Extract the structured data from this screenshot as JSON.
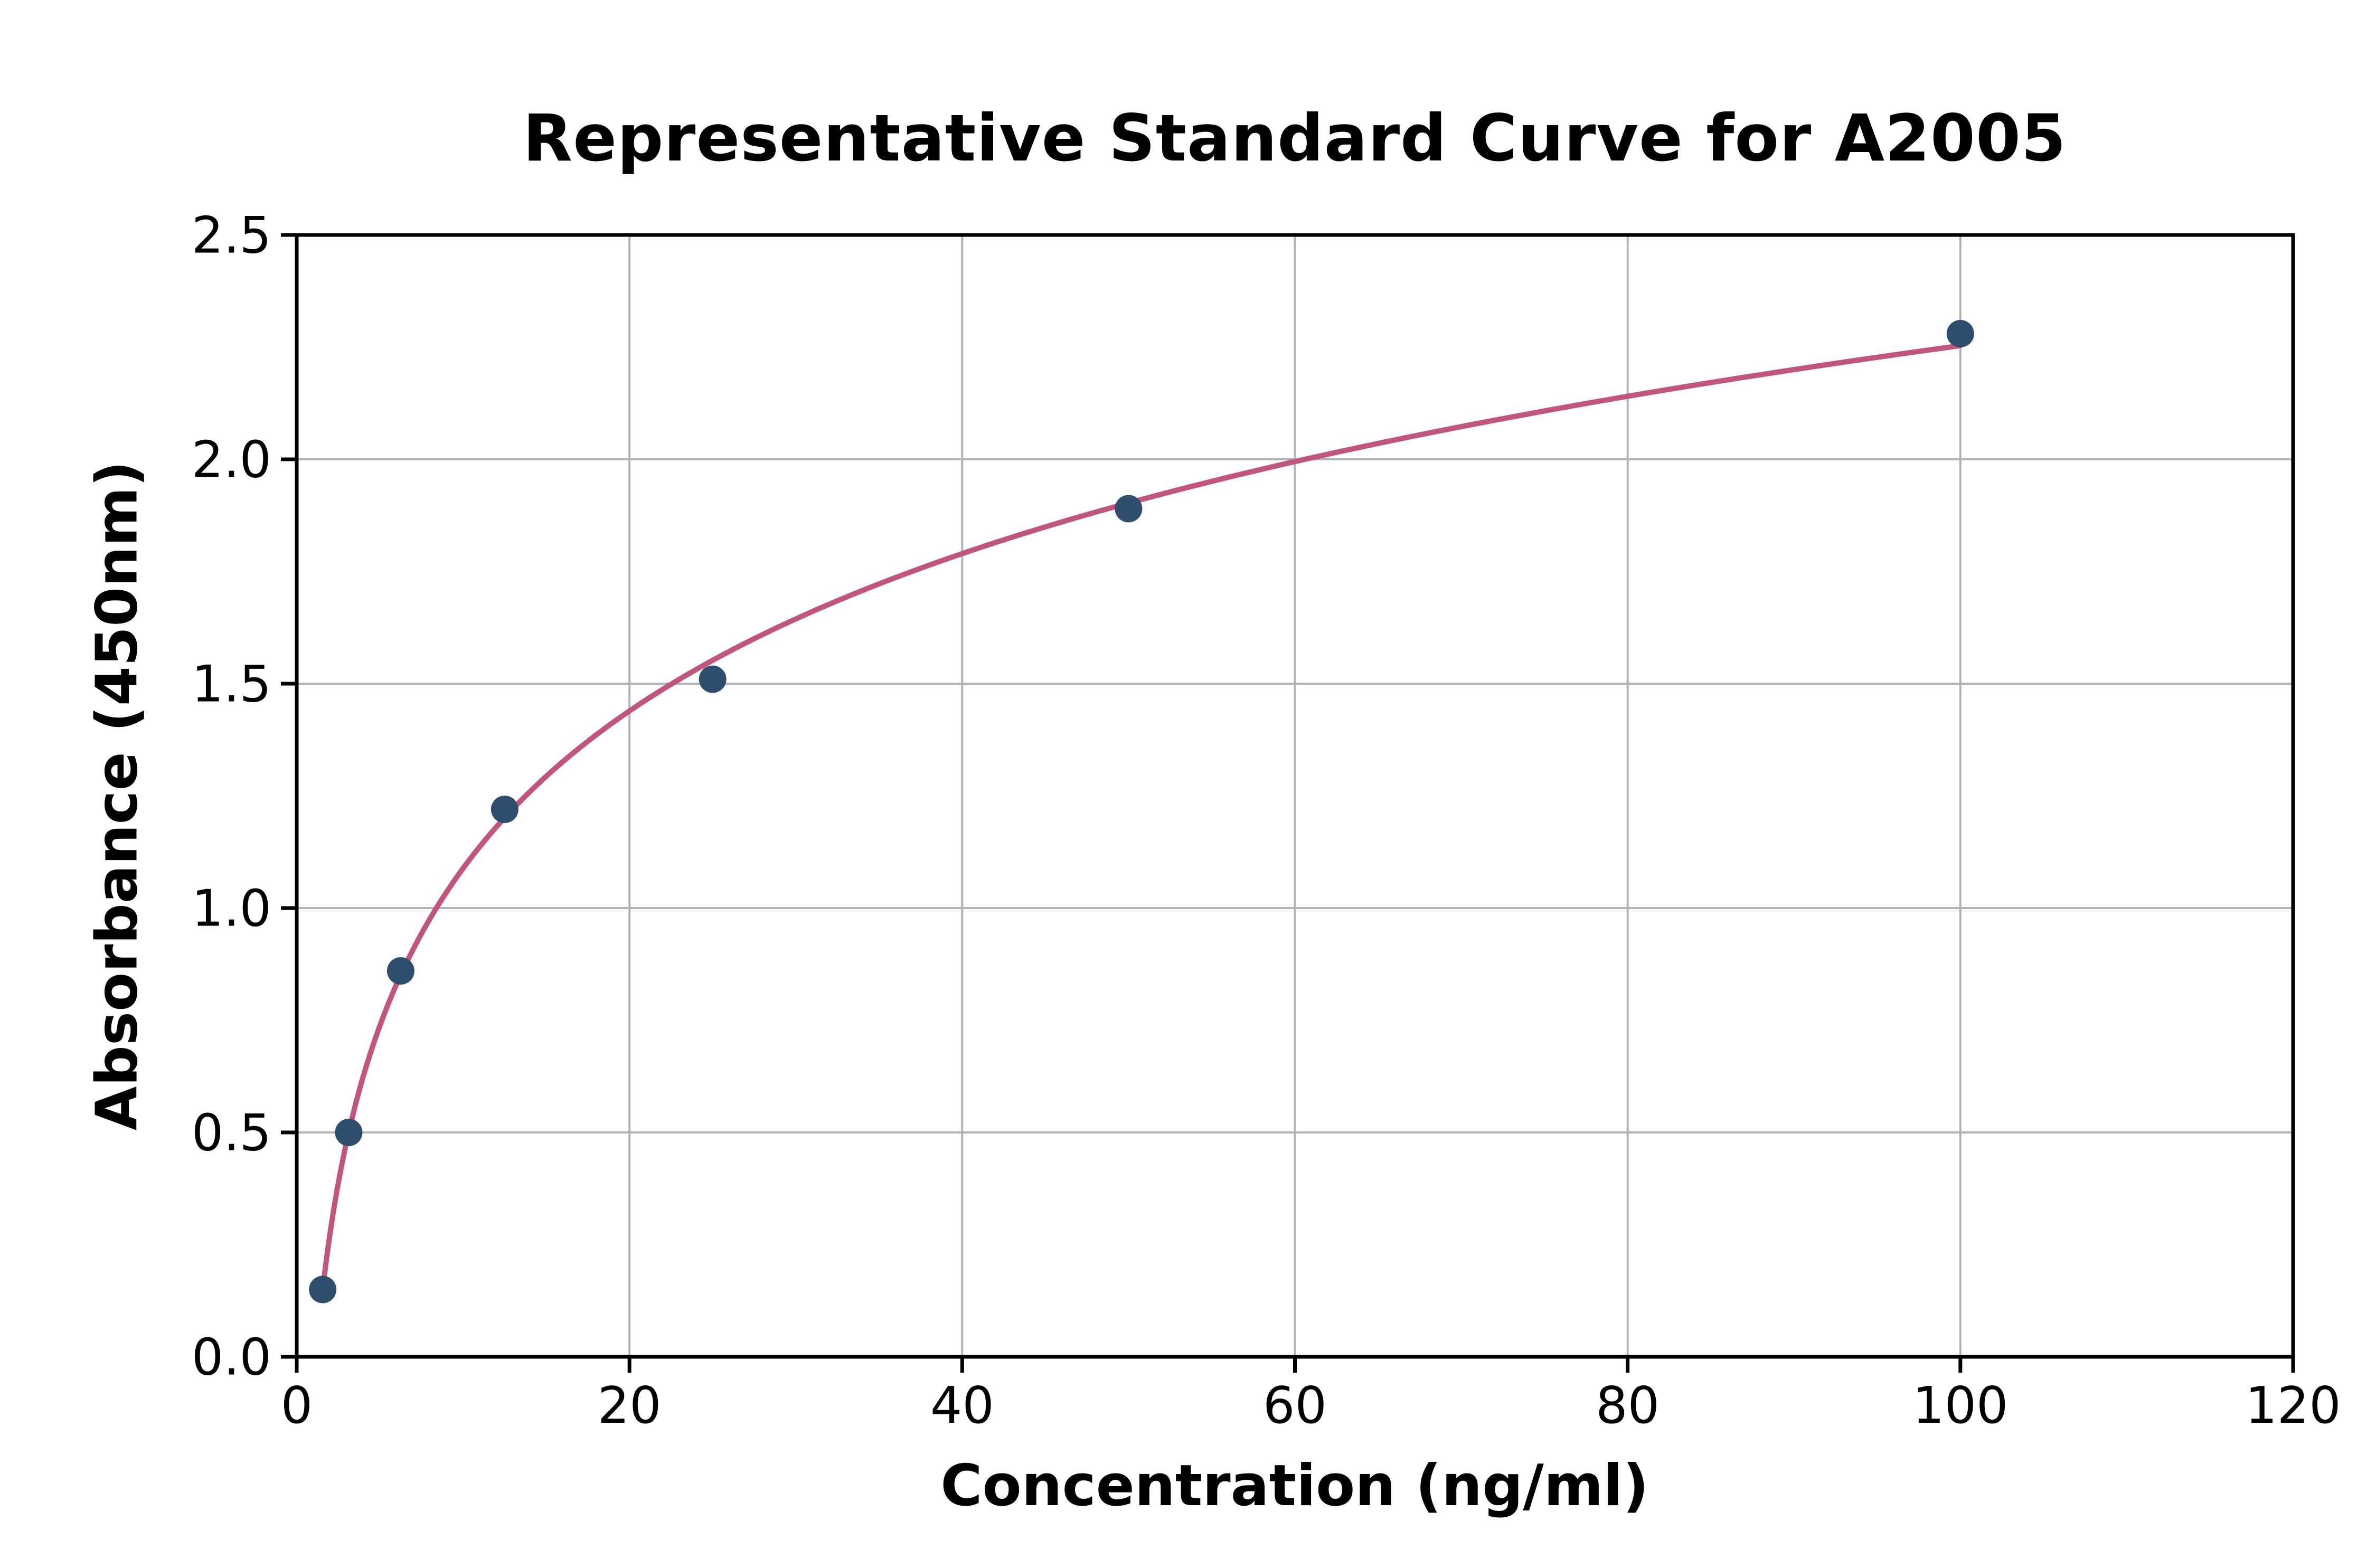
{
  "chart_data": {
    "type": "line",
    "title": "Representative Standard Curve for A2005",
    "xlabel": "Concentration (ng/ml)",
    "ylabel": "Absorbance (450nm)",
    "xlim": [
      0,
      120
    ],
    "ylim": [
      0,
      2.5
    ],
    "grid": true,
    "legend": "none",
    "x_ticks": [
      {
        "v": 0,
        "label": "0"
      },
      {
        "v": 20,
        "label": "20"
      },
      {
        "v": 40,
        "label": "40"
      },
      {
        "v": 60,
        "label": "60"
      },
      {
        "v": 80,
        "label": "80"
      },
      {
        "v": 100,
        "label": "100"
      },
      {
        "v": 120,
        "label": "120"
      }
    ],
    "y_ticks": [
      {
        "v": 0.0,
        "label": "0.0"
      },
      {
        "v": 0.5,
        "label": "0.5"
      },
      {
        "v": 1.0,
        "label": "1.0"
      },
      {
        "v": 1.5,
        "label": "1.5"
      },
      {
        "v": 2.0,
        "label": "2.0"
      },
      {
        "v": 2.5,
        "label": "2.5"
      }
    ],
    "points": [
      {
        "x": 1.56,
        "y": 0.15
      },
      {
        "x": 3.125,
        "y": 0.5
      },
      {
        "x": 6.25,
        "y": 0.86
      },
      {
        "x": 12.5,
        "y": 1.22
      },
      {
        "x": 25,
        "y": 1.51
      },
      {
        "x": 50,
        "y": 1.89
      },
      {
        "x": 100,
        "y": 2.28
      }
    ],
    "fit": {
      "type": "log",
      "a": 0.5058,
      "b": -0.076
    },
    "curve_x_range": [
      1.56,
      100
    ],
    "colors": {
      "curve": "#c2557c",
      "marker": "#2f4e6e",
      "grid": "#b3b3b3",
      "axis": "#000000",
      "background": "#ffffff"
    }
  }
}
